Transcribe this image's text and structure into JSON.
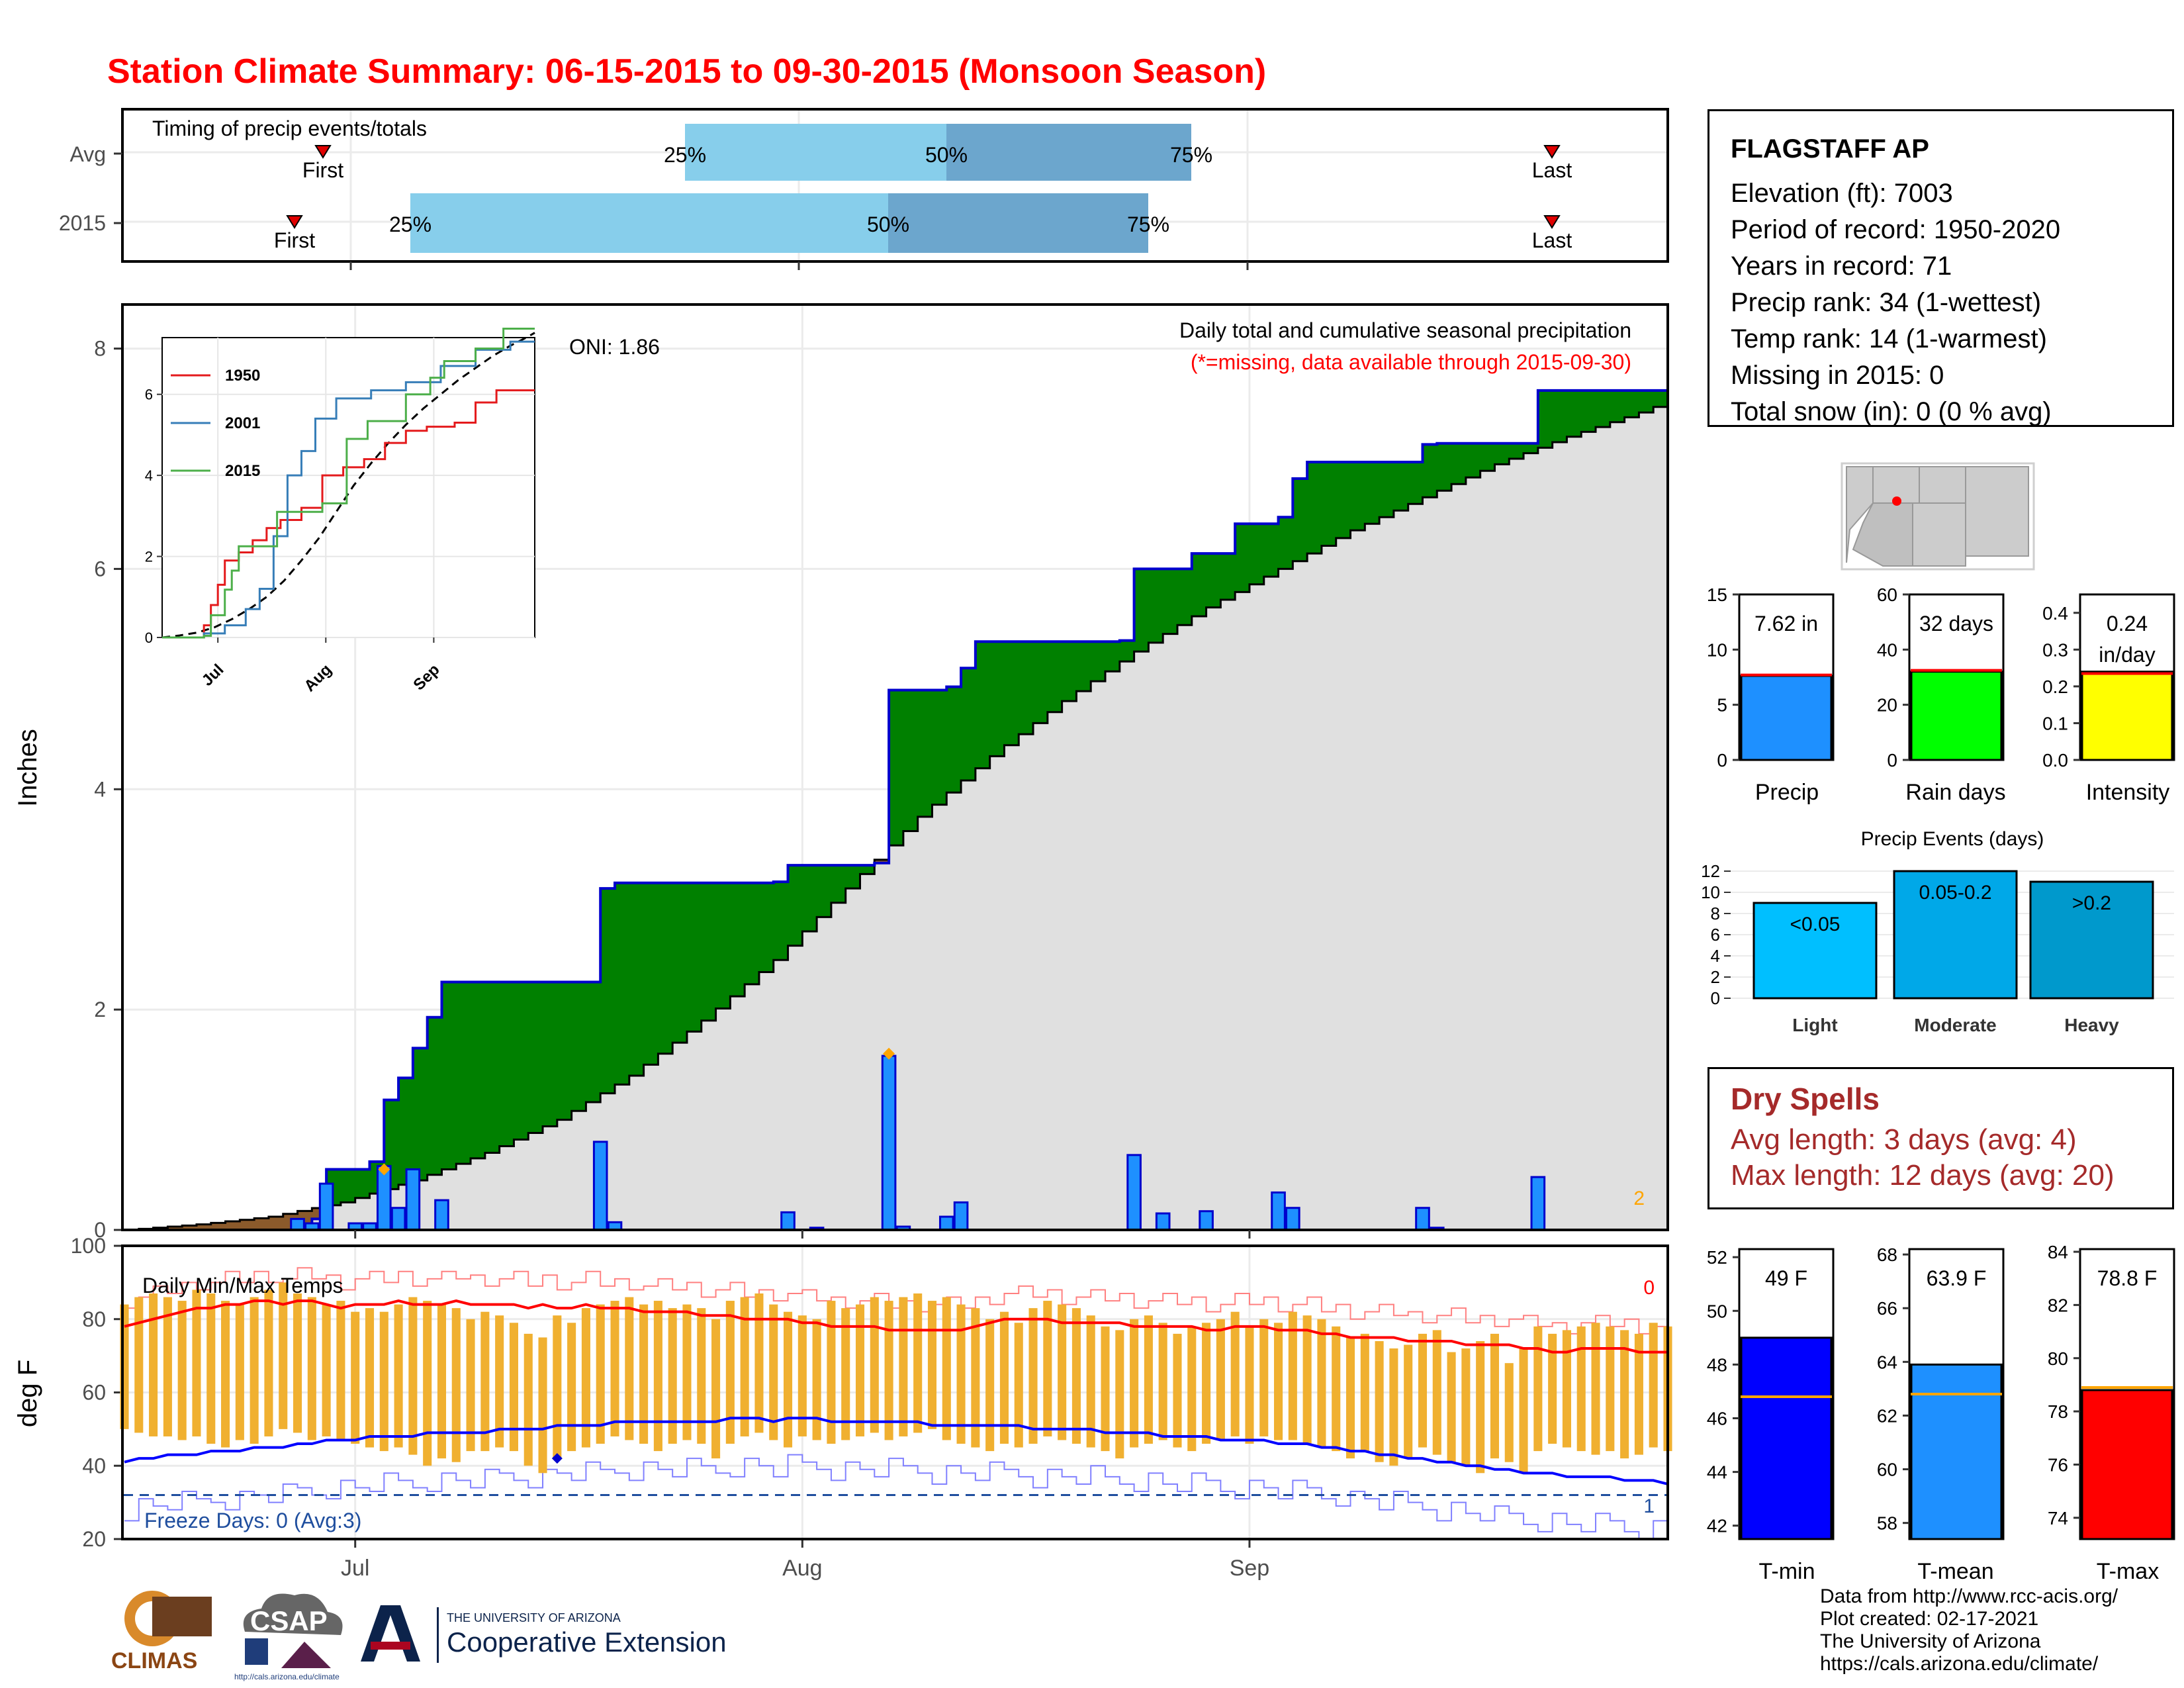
{
  "title": "Station Climate Summary: 06-15-2015 to 09-30-2015 (Monsoon Season)",
  "colors": {
    "title": "#ff0000",
    "q_light": "#87ceeb",
    "q_dark": "#6ca6cd",
    "green_fill": "#008000",
    "brown_fill": "#8b5a2b",
    "gray_fill": "#e0e0e0",
    "bar_fill": "#1e90ff",
    "bar_edge": "#0000cd",
    "rain_days": "#00ff00",
    "intensity": "#ffff00",
    "light": "#00bfff",
    "moderate": "#00a8e8",
    "heavy": "#0099cc",
    "tmin": "#0000ff",
    "tmean": "#1e90ff",
    "tmax": "#ff0000",
    "temp_bar": "#f0b030",
    "dry": "#a52a2a"
  },
  "timing": {
    "label": "Timing of precip events/totals",
    "rows": [
      "Avg",
      "2015"
    ],
    "first_label": "First",
    "last_label": "Last",
    "q25": "25%",
    "q50": "50%",
    "q75": "75%"
  },
  "precip_panel": {
    "ylabel": "Inches",
    "caption": "Daily total and cumulative seasonal precipitation",
    "missing_note": "(*=missing, data available through 2015-09-30)",
    "oni": "ONI: 1.86",
    "corner_count": "2",
    "month_labels": [
      "Jul",
      "Aug",
      "Sep"
    ]
  },
  "temp_panel": {
    "ylabel": "deg F",
    "label": "Daily Min/Max Temps",
    "freeze": "Freeze Days: 0 (Avg:3)",
    "corner_top": "0",
    "corner_bottom": "1"
  },
  "station": {
    "name": "FLAGSTAFF AP",
    "elevation": "Elevation (ft): 7003",
    "period": "Period of record: 1950-2020",
    "years": "Years in record: 71",
    "precip_rank": "Precip rank: 34 (1-wettest)",
    "temp_rank": "Temp rank: 14 (1-warmest)",
    "missing": "Missing in 2015: 0",
    "snow": "Total snow (in): 0 (0 % avg)"
  },
  "dry_spells": {
    "title": "Dry Spells",
    "avg": "Avg length: 3 days (avg: 4)",
    "max": "Max length: 12 days (avg: 20)"
  },
  "credits": {
    "line1": "Data from http://www.rcc-acis.org/",
    "line2": "Plot created: 02-17-2021",
    "line3": "The University of Arizona",
    "line4": "https://cals.arizona.edu/climate/"
  },
  "logos": {
    "climas": "CLIMAS",
    "csap": "CSAP",
    "csap_url": "http://cals.arizona.edu/climate",
    "ua_small": "THE UNIVERSITY OF ARIZONA",
    "ua_big": "Cooperative Extension"
  },
  "chart_data": [
    {
      "type": "bar",
      "name": "Precip",
      "ylim": [
        0,
        15
      ],
      "yticks": [
        0,
        5,
        10,
        15
      ],
      "value": 7.62,
      "avg": 7.7,
      "label": "7.62 in",
      "xlabel": "Precip"
    },
    {
      "type": "bar",
      "name": "Rain days",
      "ylim": [
        0,
        60
      ],
      "yticks": [
        0,
        20,
        40,
        60
      ],
      "value": 32,
      "avg": 32.5,
      "label": "32 days",
      "xlabel": "Rain days"
    },
    {
      "type": "bar",
      "name": "Intensity",
      "ylim": [
        0,
        0.45
      ],
      "yticks": [
        0.0,
        0.1,
        0.2,
        0.3,
        0.4
      ],
      "value": 0.24,
      "avg": 0.235,
      "label": "0.24",
      "label2": "in/day",
      "xlabel": "Intensity"
    },
    {
      "type": "bar",
      "title": "Precip Events (days)",
      "categories": [
        "Light",
        "Moderate",
        "Heavy"
      ],
      "values": [
        9,
        12,
        11
      ],
      "labels": [
        "<0.05",
        "0.05-0.2",
        ">0.2"
      ],
      "ylim": [
        0,
        12.5
      ],
      "yticks": [
        0,
        2,
        4,
        6,
        8,
        10,
        12
      ]
    },
    {
      "type": "bar",
      "name": "T-min",
      "ylim": [
        41.5,
        52.3
      ],
      "yticks": [
        42,
        44,
        46,
        48,
        50,
        52
      ],
      "value": 49.0,
      "avg": 46.8,
      "label": "49 F",
      "xlabel": "T-min"
    },
    {
      "type": "bar",
      "name": "T-mean",
      "ylim": [
        57.4,
        68.2
      ],
      "yticks": [
        58,
        60,
        62,
        64,
        66,
        68
      ],
      "value": 63.9,
      "avg": 62.8,
      "label": "63.9 F",
      "xlabel": "T-mean"
    },
    {
      "type": "bar",
      "name": "T-max",
      "ylim": [
        73.2,
        84.1
      ],
      "yticks": [
        74,
        76,
        78,
        80,
        82,
        84
      ],
      "value": 78.8,
      "avg": 78.9,
      "label": "78.8 F",
      "xlabel": "T-max"
    },
    {
      "type": "line",
      "title": "Daily total and cumulative seasonal precipitation",
      "ylabel": "Inches",
      "ylim": [
        0,
        8.4
      ],
      "yticks": [
        0,
        2,
        4,
        6,
        8
      ],
      "x_ticks": [
        "Jul",
        "Aug",
        "Sep"
      ],
      "x_tick_days": [
        16,
        47,
        78
      ],
      "n_days": 108,
      "cumulative_2015_steps": [
        [
          0,
          0.0
        ],
        [
          12,
          0.04
        ],
        [
          13,
          0.1
        ],
        [
          14,
          0.55
        ],
        [
          17,
          0.62
        ],
        [
          18,
          1.18
        ],
        [
          19,
          1.38
        ],
        [
          20,
          1.65
        ],
        [
          21,
          1.93
        ],
        [
          22,
          2.25
        ],
        [
          33,
          3.1
        ],
        [
          34,
          3.15
        ],
        [
          45,
          3.16
        ],
        [
          46,
          3.31
        ],
        [
          52,
          3.33
        ],
        [
          53,
          4.9
        ],
        [
          57,
          4.93
        ],
        [
          58,
          5.1
        ],
        [
          59,
          5.34
        ],
        [
          69,
          5.35
        ],
        [
          70,
          6.0
        ],
        [
          74,
          6.14
        ],
        [
          77,
          6.41
        ],
        [
          80,
          6.47
        ],
        [
          81,
          6.82
        ],
        [
          82,
          6.97
        ],
        [
          90,
          7.13
        ],
        [
          91,
          7.14
        ],
        [
          98,
          7.62
        ]
      ],
      "avg_cumulative": [
        [
          0,
          0.0
        ],
        [
          5,
          0.05
        ],
        [
          10,
          0.12
        ],
        [
          15,
          0.25
        ],
        [
          20,
          0.45
        ],
        [
          25,
          0.7
        ],
        [
          30,
          1.0
        ],
        [
          35,
          1.4
        ],
        [
          40,
          1.9
        ],
        [
          45,
          2.45
        ],
        [
          50,
          3.1
        ],
        [
          55,
          3.75
        ],
        [
          60,
          4.3
        ],
        [
          65,
          4.8
        ],
        [
          70,
          5.25
        ],
        [
          75,
          5.65
        ],
        [
          80,
          6.0
        ],
        [
          85,
          6.35
        ],
        [
          90,
          6.65
        ],
        [
          95,
          6.95
        ],
        [
          100,
          7.2
        ],
        [
          105,
          7.42
        ],
        [
          107,
          7.52
        ]
      ],
      "daily_bars": [
        [
          12,
          0.1
        ],
        [
          13,
          0.06
        ],
        [
          14,
          0.42
        ],
        [
          16,
          0.06
        ],
        [
          17,
          0.06
        ],
        [
          18,
          0.58
        ],
        [
          19,
          0.2
        ],
        [
          20,
          0.55
        ],
        [
          22,
          0.27
        ],
        [
          33,
          0.8
        ],
        [
          34,
          0.07
        ],
        [
          46,
          0.16
        ],
        [
          48,
          0.02
        ],
        [
          53,
          1.58
        ],
        [
          54,
          0.03
        ],
        [
          57,
          0.12
        ],
        [
          58,
          0.25
        ],
        [
          70,
          0.68
        ],
        [
          72,
          0.15
        ],
        [
          75,
          0.17
        ],
        [
          80,
          0.34
        ],
        [
          81,
          0.2
        ],
        [
          90,
          0.2
        ],
        [
          91,
          0.02
        ],
        [
          98,
          0.48
        ]
      ],
      "diamond_markers": [
        [
          18,
          0.55
        ],
        [
          53,
          1.6
        ]
      ]
    },
    {
      "type": "line",
      "title": "inset cumulative precipitation",
      "series": [
        {
          "name": "1950",
          "values": [
            [
              0,
              0
            ],
            [
              12,
              0.3
            ],
            [
              14,
              0.8
            ],
            [
              16,
              1.3
            ],
            [
              18,
              1.9
            ],
            [
              22,
              2.1
            ],
            [
              26,
              2.4
            ],
            [
              30,
              2.7
            ],
            [
              34,
              2.9
            ],
            [
              40,
              3.2
            ],
            [
              46,
              4.0
            ],
            [
              52,
              4.2
            ],
            [
              58,
              4.4
            ],
            [
              64,
              4.8
            ],
            [
              70,
              5.1
            ],
            [
              76,
              5.2
            ],
            [
              84,
              5.3
            ],
            [
              90,
              5.8
            ],
            [
              96,
              6.1
            ],
            [
              107,
              6.1
            ]
          ]
        },
        {
          "name": "2001",
          "values": [
            [
              0,
              0
            ],
            [
              12,
              0.1
            ],
            [
              18,
              0.3
            ],
            [
              24,
              0.7
            ],
            [
              28,
              1.2
            ],
            [
              32,
              2.5
            ],
            [
              36,
              4.0
            ],
            [
              40,
              4.6
            ],
            [
              44,
              5.4
            ],
            [
              50,
              5.9
            ],
            [
              60,
              6.1
            ],
            [
              70,
              6.3
            ],
            [
              80,
              6.7
            ],
            [
              90,
              7.1
            ],
            [
              100,
              7.3
            ],
            [
              107,
              7.3
            ]
          ]
        },
        {
          "name": "2015",
          "values": [
            [
              0,
              0
            ],
            [
              12,
              0.04
            ],
            [
              14,
              0.55
            ],
            [
              18,
              1.18
            ],
            [
              20,
              1.65
            ],
            [
              22,
              2.25
            ],
            [
              33,
              3.1
            ],
            [
              46,
              3.31
            ],
            [
              53,
              4.9
            ],
            [
              59,
              5.34
            ],
            [
              70,
              6.0
            ],
            [
              77,
              6.41
            ],
            [
              81,
              6.82
            ],
            [
              90,
              7.13
            ],
            [
              98,
              7.62
            ],
            [
              107,
              7.62
            ]
          ]
        }
      ],
      "xlim": [
        0,
        107
      ],
      "ylim": [
        0,
        7.4
      ],
      "yticks": [
        0,
        2,
        4,
        6
      ],
      "x_ticks": [
        "Jul",
        "Aug",
        "Sep"
      ],
      "legend": [
        "1950",
        "2001",
        "2015"
      ]
    },
    {
      "type": "line",
      "title": "Daily Min/Max Temps",
      "ylabel": "deg F",
      "ylim": [
        20,
        100
      ],
      "yticks": [
        20,
        40,
        60,
        80,
        100
      ],
      "freeze_line": 32,
      "avg_max": [
        78,
        79,
        80,
        81,
        82,
        83,
        83,
        84,
        84,
        85,
        85,
        84,
        85,
        85,
        84,
        83,
        84,
        84,
        84,
        85,
        84,
        84,
        84,
        85,
        84,
        84,
        84,
        84,
        83,
        84,
        83,
        83,
        84,
        83,
        83,
        83,
        82,
        82,
        82,
        82,
        81,
        81,
        81,
        80,
        80,
        80,
        80,
        79,
        79,
        78,
        78,
        78,
        78,
        77,
        77,
        77,
        77,
        77,
        77,
        78,
        79,
        80,
        80,
        80,
        80,
        79,
        79,
        79,
        79,
        79,
        78,
        78,
        78,
        78,
        78,
        77,
        77,
        78,
        78,
        78,
        77,
        77,
        77,
        76,
        76,
        75,
        75,
        75,
        75,
        74,
        74,
        74,
        74,
        73,
        73,
        73,
        73,
        72,
        72,
        71,
        71,
        72,
        72,
        72,
        72,
        71,
        71,
        71
      ],
      "avg_min": [
        41,
        42,
        42,
        43,
        43,
        43,
        44,
        44,
        44,
        45,
        45,
        45,
        46,
        46,
        47,
        47,
        47,
        48,
        48,
        48,
        48,
        49,
        49,
        49,
        49,
        49,
        50,
        50,
        50,
        50,
        51,
        51,
        51,
        51,
        52,
        52,
        52,
        52,
        52,
        52,
        52,
        52,
        53,
        53,
        53,
        52,
        53,
        53,
        53,
        52,
        52,
        52,
        52,
        52,
        52,
        52,
        51,
        51,
        51,
        51,
        51,
        51,
        51,
        50,
        50,
        50,
        50,
        50,
        49,
        49,
        49,
        49,
        48,
        48,
        48,
        48,
        47,
        47,
        47,
        47,
        46,
        46,
        46,
        45,
        45,
        44,
        44,
        43,
        43,
        42,
        42,
        41,
        41,
        40,
        40,
        39,
        39,
        38,
        38,
        38,
        37,
        37,
        37,
        37,
        36,
        36,
        36,
        35
      ],
      "daily_max": [
        84,
        86,
        87,
        86,
        85,
        88,
        87,
        85,
        84,
        86,
        88,
        90,
        87,
        86,
        84,
        85,
        82,
        83,
        82,
        84,
        86,
        85,
        84,
        83,
        80,
        82,
        81,
        79,
        76,
        75,
        81,
        79,
        83,
        84,
        85,
        86,
        84,
        85,
        83,
        84,
        83,
        80,
        85,
        86,
        87,
        84,
        82,
        81,
        80,
        85,
        83,
        84,
        86,
        85,
        86,
        87,
        85,
        86,
        84,
        83,
        80,
        82,
        79,
        83,
        85,
        84,
        83,
        81,
        78,
        77,
        80,
        81,
        79,
        76,
        78,
        79,
        80,
        82,
        78,
        80,
        79,
        82,
        81,
        80,
        78,
        75,
        76,
        74,
        72,
        73,
        76,
        77,
        71,
        72,
        74,
        76,
        68,
        72,
        78,
        76,
        77,
        78,
        79,
        78,
        77,
        76,
        79,
        78
      ],
      "daily_min": [
        50,
        49,
        48,
        48,
        47,
        48,
        46,
        45,
        47,
        46,
        48,
        50,
        49,
        47,
        48,
        47,
        46,
        45,
        44,
        45,
        43,
        40,
        42,
        41,
        44,
        44,
        45,
        44,
        40,
        38,
        42,
        44,
        45,
        46,
        48,
        47,
        46,
        44,
        46,
        47,
        46,
        42,
        46,
        48,
        49,
        47,
        45,
        48,
        47,
        46,
        47,
        48,
        49,
        47,
        48,
        49,
        50,
        47,
        46,
        45,
        44,
        46,
        45,
        46,
        48,
        47,
        46,
        45,
        44,
        42,
        45,
        46,
        47,
        45,
        44,
        46,
        47,
        48,
        46,
        48,
        47,
        47,
        46,
        45,
        44,
        42,
        44,
        41,
        40,
        42,
        45,
        43,
        41,
        40,
        38,
        42,
        41,
        38,
        44,
        46,
        45,
        44,
        43,
        44,
        42,
        43,
        45,
        44
      ],
      "record_high_offset": 5,
      "record_low_offset": -13
    }
  ]
}
